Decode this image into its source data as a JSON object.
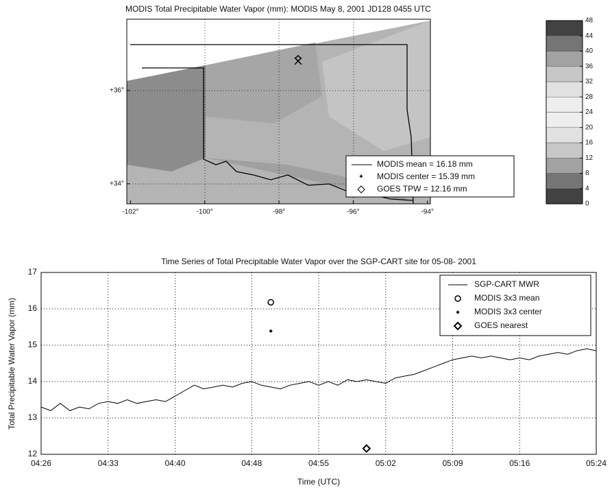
{
  "chart_data": [
    {
      "type": "map",
      "title": "MODIS Total Precipitable Water Vapor (mm): MODIS May 8, 2001 JD128 0455 UTC",
      "xlim": [
        -102.1,
        -93.92
      ],
      "ylim": [
        33.57,
        37.53
      ],
      "xticks": [
        {
          "value": -102,
          "label": "-102°"
        },
        {
          "value": -100,
          "label": "-100°"
        },
        {
          "value": -98,
          "label": "-98°"
        },
        {
          "value": -96,
          "label": "-96°"
        },
        {
          "value": -94,
          "label": "-94°"
        }
      ],
      "yticks": [
        {
          "value": 34,
          "label": "+34°"
        },
        {
          "value": 36,
          "label": "+36°"
        }
      ],
      "legend": [
        "MODIS mean = 16.18 mm",
        "MODIS center = 15.39 mm",
        "GOES TPW = 12.16 mm"
      ],
      "colorbar": {
        "lim": [
          0,
          48
        ],
        "ticks": [
          0,
          4,
          8,
          12,
          16,
          20,
          24,
          28,
          32,
          36,
          40,
          44,
          48
        ]
      }
    },
    {
      "type": "line",
      "title": "Time Series of Total Precipitable Water Vapor over the SGP-CART site for 05-08- 2001",
      "xlabel": "Time (UTC)",
      "ylabel": "Total Precipitable Water Vapor (mm)",
      "xlim": [
        "04:26",
        "05:24"
      ],
      "xticks": [
        "04:26",
        "04:33",
        "04:40",
        "04:48",
        "04:55",
        "05:02",
        "05:09",
        "05:16",
        "05:24"
      ],
      "ylim": [
        12,
        17
      ],
      "yticks": [
        12,
        13,
        14,
        15,
        16,
        17
      ],
      "grid": true,
      "legend": "upper right",
      "series": [
        {
          "name": "SGP-CART MWR",
          "color": "#000000",
          "marker": "none",
          "x": [
            "04:26",
            "04:27",
            "04:28",
            "04:29",
            "04:30",
            "04:31",
            "04:32",
            "04:33",
            "04:34",
            "04:35",
            "04:36",
            "04:37",
            "04:38",
            "04:39",
            "04:40",
            "04:41",
            "04:42",
            "04:43",
            "04:44",
            "04:45",
            "04:46",
            "04:47",
            "04:48",
            "04:49",
            "04:50",
            "04:51",
            "04:52",
            "04:53",
            "04:54",
            "04:55",
            "04:56",
            "04:57",
            "04:58",
            "04:59",
            "05:00",
            "05:01",
            "05:02",
            "05:03",
            "05:04",
            "05:05",
            "05:06",
            "05:07",
            "05:08",
            "05:09",
            "05:10",
            "05:11",
            "05:12",
            "05:13",
            "05:14",
            "05:15",
            "05:16",
            "05:17",
            "05:18",
            "05:19",
            "05:20",
            "05:21",
            "05:22",
            "05:23",
            "05:24"
          ],
          "values": [
            13.3,
            13.2,
            13.4,
            13.2,
            13.3,
            13.25,
            13.4,
            13.45,
            13.4,
            13.5,
            13.4,
            13.45,
            13.5,
            13.45,
            13.6,
            13.75,
            13.9,
            13.8,
            13.85,
            13.9,
            13.85,
            13.95,
            14.0,
            13.9,
            13.85,
            13.8,
            13.9,
            13.95,
            14.0,
            13.9,
            14.0,
            13.9,
            14.05,
            14.0,
            14.05,
            14.0,
            13.95,
            14.1,
            14.15,
            14.2,
            14.3,
            14.4,
            14.5,
            14.6,
            14.65,
            14.7,
            14.65,
            14.7,
            14.65,
            14.6,
            14.65,
            14.6,
            14.7,
            14.75,
            14.8,
            14.75,
            14.85,
            14.9,
            14.85
          ]
        },
        {
          "name": "MODIS 3x3 mean",
          "color": "#000000",
          "marker": "circle",
          "x": [
            "04:50"
          ],
          "values": [
            16.18
          ]
        },
        {
          "name": "MODIS 3x3 center",
          "color": "#000000",
          "marker": "star",
          "x": [
            "04:50"
          ],
          "values": [
            15.39
          ]
        },
        {
          "name": "GOES nearest",
          "color": "#000000",
          "marker": "diamond",
          "x": [
            "05:00"
          ],
          "values": [
            12.16
          ]
        }
      ]
    }
  ]
}
